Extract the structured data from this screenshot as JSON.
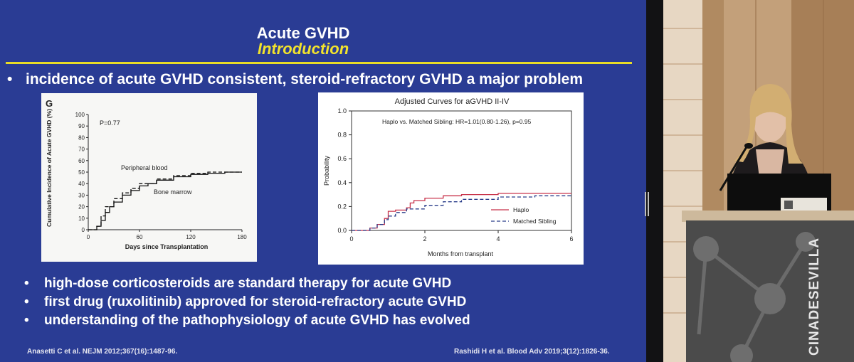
{
  "slide": {
    "title": "Acute GVHD",
    "subtitle": "Introduction",
    "main_bullet": "incidence of acute GVHD consistent, steroid-refractory GVHD a major problem",
    "bullet_glyph": "•",
    "bullets": [
      "high-dose corticosteroids are standard therapy for acute GVHD",
      "first drug (ruxolitinib) approved for steroid-refractory acute GVHD",
      "understanding of the pathophysiology of acute GVHD has evolved"
    ],
    "ref_left": "Anasetti C et al. NEJM 2012;367(16):1487-96.",
    "ref_right": "Rashidi H et al. Blood Adv 2019;3(12):1826-36.",
    "colors": {
      "background": "#2a3c94",
      "accent": "#f2e32c",
      "text": "#ffffff"
    }
  },
  "chart_data": [
    {
      "type": "line",
      "panel_label": "G",
      "title": "",
      "xlabel": "Days since Transplantation",
      "ylabel": "Cumulative Incidence of Acute GVHD (%)",
      "xlim": [
        0,
        180
      ],
      "ylim": [
        0,
        100
      ],
      "xticks": [
        0,
        60,
        120,
        180
      ],
      "yticks": [
        0,
        10,
        20,
        30,
        40,
        50,
        60,
        70,
        80,
        90,
        100
      ],
      "annotation": "P=0.77",
      "series": [
        {
          "name": "Peripheral blood",
          "style": "dashed",
          "x": [
            0,
            10,
            15,
            20,
            30,
            40,
            50,
            60,
            80,
            100,
            120,
            140,
            160,
            180
          ],
          "y": [
            0,
            3,
            12,
            20,
            27,
            32,
            36,
            40,
            44,
            47,
            49,
            50,
            50,
            50
          ]
        },
        {
          "name": "Bone marrow",
          "style": "solid",
          "x": [
            0,
            10,
            15,
            20,
            25,
            30,
            40,
            50,
            60,
            70,
            80,
            100,
            120,
            140,
            160,
            180
          ],
          "y": [
            0,
            3,
            8,
            15,
            20,
            24,
            30,
            34,
            38,
            40,
            43,
            46,
            48,
            49,
            50,
            50
          ]
        }
      ]
    },
    {
      "type": "line",
      "title": "Adjusted Curves for aGVHD II-IV",
      "xlabel": "Months from transplant",
      "ylabel": "Probability",
      "xlim": [
        0,
        6
      ],
      "ylim": [
        0,
        1.0
      ],
      "xticks": [
        0,
        2,
        4,
        6
      ],
      "yticks": [
        "0.0",
        "0.2",
        "0.4",
        "0.6",
        "0.8",
        "1.0"
      ],
      "annotation": "Haplo vs. Matched Sibling: HR=1.01(0.80-1.26), p=0.95",
      "legend_position": "bottom-right",
      "series": [
        {
          "name": "Haplo",
          "style": "solid",
          "color": "#c8324a",
          "x": [
            0,
            0.3,
            0.5,
            0.7,
            0.9,
            1.0,
            1.2,
            1.4,
            1.5,
            1.6,
            1.7,
            2.0,
            2.5,
            3.0,
            4.0,
            5.0,
            6.0
          ],
          "y": [
            0,
            0.0,
            0.02,
            0.05,
            0.1,
            0.16,
            0.17,
            0.17,
            0.19,
            0.23,
            0.25,
            0.27,
            0.29,
            0.3,
            0.31,
            0.31,
            0.31
          ]
        },
        {
          "name": "Matched Sibling",
          "style": "dashed",
          "color": "#2a3d8a",
          "x": [
            0,
            0.3,
            0.5,
            0.7,
            0.9,
            1.0,
            1.2,
            1.5,
            2.0,
            2.5,
            3.0,
            4.0,
            5.0,
            6.0
          ],
          "y": [
            0,
            0.0,
            0.02,
            0.05,
            0.09,
            0.12,
            0.15,
            0.18,
            0.21,
            0.24,
            0.26,
            0.28,
            0.29,
            0.3
          ]
        }
      ]
    }
  ],
  "video": {
    "podium_text": "CINADESEVILLA"
  }
}
